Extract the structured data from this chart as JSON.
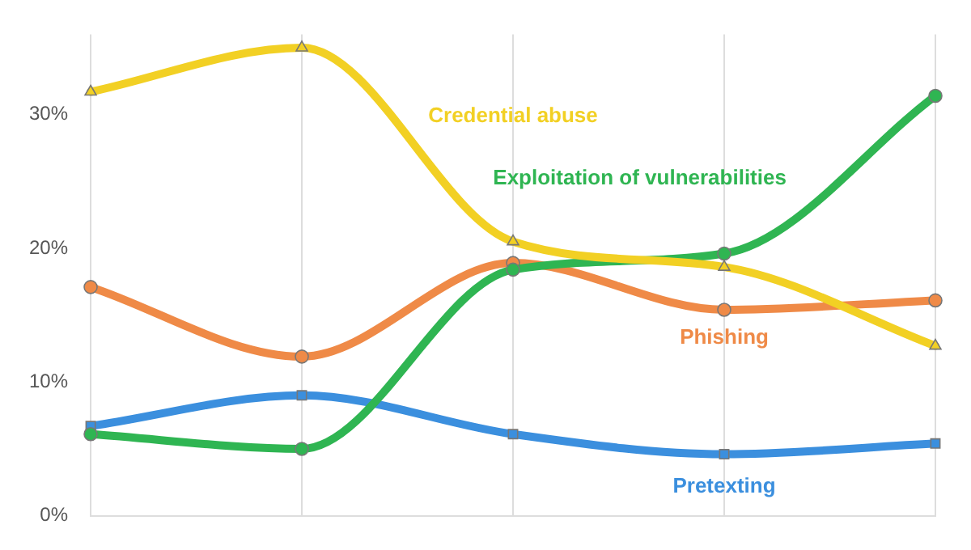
{
  "chart_data": {
    "type": "line",
    "categories": [
      null,
      null,
      null,
      null,
      null
    ],
    "series": [
      {
        "name": "Credential abuse",
        "color": "#f2d024",
        "marker": "triangle",
        "values": [
          31.7,
          35.0,
          20.5,
          18.6,
          12.7
        ]
      },
      {
        "name": "Exploitation of vulnerabilities",
        "color": "#2fb552",
        "marker": "circle",
        "values": [
          6.1,
          5.0,
          18.4,
          19.6,
          31.4
        ]
      },
      {
        "name": "Phishing",
        "color": "#ef8a47",
        "marker": "circle",
        "values": [
          17.1,
          11.9,
          18.9,
          15.4,
          16.1
        ]
      },
      {
        "name": "Pretexting",
        "color": "#3b8fde",
        "marker": "square",
        "values": [
          6.7,
          9.0,
          6.1,
          4.6,
          5.4
        ]
      }
    ],
    "ylim": [
      0,
      36
    ],
    "yticks": [
      {
        "value": 0,
        "label": "0%"
      },
      {
        "value": 10,
        "label": "10%"
      },
      {
        "value": 20,
        "label": "20%"
      },
      {
        "value": 30,
        "label": "30%"
      }
    ],
    "grid": "x",
    "legend": false
  }
}
